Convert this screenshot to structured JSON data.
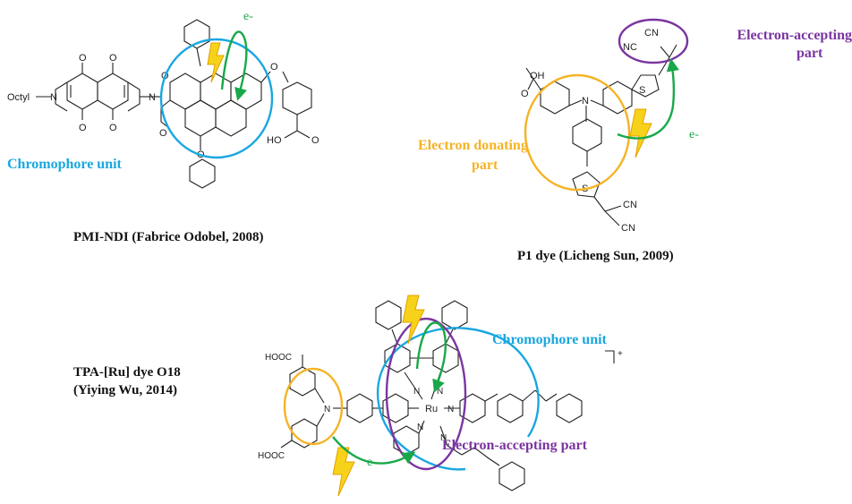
{
  "colors": {
    "cyan": "#1aa7e0",
    "orange": "#f5b324",
    "purple": "#7a35a0",
    "green": "#18a84a",
    "bolt": "#f7d21a",
    "bolt_edge": "#e5a000",
    "bond": "#222222"
  },
  "panel1": {
    "chromophore_label": "Chromophore unit",
    "electron_label": "e-",
    "caption": "PMI-NDI (Fabrice Odobel, 2008)",
    "atoms": {
      "octyl": "Octyl",
      "n1": "N",
      "n2": "N",
      "o1": "O",
      "o2": "O",
      "o3": "O",
      "o4": "O",
      "o5": "O",
      "o6": "O",
      "o_ether1": "O",
      "o_ether2": "O",
      "acid_o": "O",
      "acid_ho": "HO"
    }
  },
  "panel2": {
    "acceptor_label_line1": "Electron-accepting",
    "acceptor_label_line2": "part",
    "donor_label_line1": "Electron donating",
    "donor_label_line2": "part",
    "electron_label": "e-",
    "caption": "P1 dye (Licheng Sun, 2009)",
    "atoms": {
      "oh": "OH",
      "o": "O",
      "n": "N",
      "s1": "S",
      "s2": "S",
      "cn1": "CN",
      "nc": "NC",
      "cn2": "CN",
      "cn3": "CN"
    }
  },
  "panel3": {
    "title_line1": "TPA-[Ru] dye O18",
    "title_line2": "(Yiying Wu, 2014)",
    "chromophore_label": "Chromophore unit",
    "acceptor_label": "Electron-accepting part",
    "electron_label": "e-",
    "charge": "+",
    "atoms": {
      "hooc1": "HOOC",
      "hooc2": "HOOC",
      "n_tpa": "N",
      "ru": "Ru",
      "n1": "N",
      "n2": "N",
      "n3": "N",
      "n4": "N",
      "n5": "N"
    }
  }
}
